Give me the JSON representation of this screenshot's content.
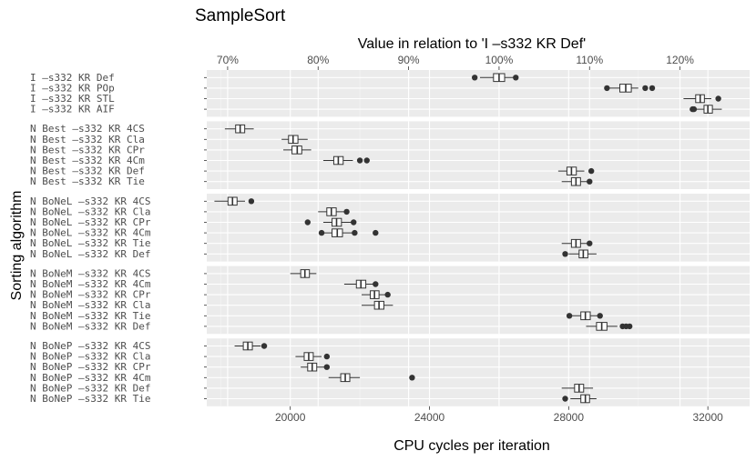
{
  "chart_data": {
    "type": "boxplot",
    "title": "SampleSort",
    "xlabel": "CPU cycles per iteration",
    "x2label": "Value in relation to 'I       –s332 KR Def'",
    "ylabel": "Sorting algorithm",
    "xlim": [
      17600,
      33200
    ],
    "x_ticks": [
      20000,
      24000,
      28000,
      32000
    ],
    "x_tick_labels": [
      "20000",
      "24000",
      "28000",
      "32000"
    ],
    "x2_reference": 26000,
    "x2_ticks": [
      70,
      80,
      90,
      100,
      110,
      120
    ],
    "x2_tick_labels": [
      "70%",
      "80%",
      "90%",
      "100%",
      "110%",
      "120%"
    ],
    "groups": [
      {
        "name": "I",
        "rows": [
          {
            "label": "I         –s332 KR Def",
            "whisker_low": 25450,
            "q1": 25840,
            "median": 26000,
            "q3": 26160,
            "whisker_high": 26520,
            "outliers": [
              25300,
              26480
            ]
          },
          {
            "label": "I         –s332 KR POp",
            "whisker_low": 29080,
            "q1": 29470,
            "median": 29640,
            "q3": 29800,
            "whisker_high": 30000,
            "outliers": [
              29100,
              30200,
              30400
            ]
          },
          {
            "label": "I         –s332 KR STL",
            "whisker_low": 31300,
            "q1": 31650,
            "median": 31780,
            "q3": 31900,
            "whisker_high": 32100,
            "outliers": [
              32300
            ]
          },
          {
            "label": "I         –s332 KR AIF",
            "whisker_low": 31550,
            "q1": 31890,
            "median": 32000,
            "q3": 32130,
            "whisker_high": 32400,
            "outliers": [
              31560,
              31600
            ]
          }
        ]
      },
      {
        "name": "N Best",
        "rows": [
          {
            "label": "N Best  –s332 KR 4CS",
            "whisker_low": 18120,
            "q1": 18430,
            "median": 18560,
            "q3": 18690,
            "whisker_high": 18950,
            "outliers": []
          },
          {
            "label": "N Best  –s332 KR Cla",
            "whisker_low": 19750,
            "q1": 19950,
            "median": 20080,
            "q3": 20220,
            "whisker_high": 20500,
            "outliers": []
          },
          {
            "label": "N Best  –s332 KR CPr",
            "whisker_low": 19800,
            "q1": 20050,
            "median": 20200,
            "q3": 20330,
            "whisker_high": 20600,
            "outliers": []
          },
          {
            "label": "N Best  –s332 KR 4Cm",
            "whisker_low": 20950,
            "q1": 21250,
            "median": 21380,
            "q3": 21520,
            "whisker_high": 21800,
            "outliers": [
              22000,
              22200
            ]
          },
          {
            "label": "N Best  –s332 KR Def",
            "whisker_low": 27700,
            "q1": 27950,
            "median": 28080,
            "q3": 28220,
            "whisker_high": 28450,
            "outliers": [
              28650
            ]
          },
          {
            "label": "N Best  –s332 KR Tie",
            "whisker_low": 27800,
            "q1": 28080,
            "median": 28210,
            "q3": 28340,
            "whisker_high": 28550,
            "outliers": [
              28600
            ]
          }
        ]
      },
      {
        "name": "N BoNeL",
        "rows": [
          {
            "label": "N BoNeL –s332 KR 4CS",
            "whisker_low": 17820,
            "q1": 18210,
            "median": 18340,
            "q3": 18470,
            "whisker_high": 18700,
            "outliers": [
              18880
            ]
          },
          {
            "label": "N BoNeL –s332 KR Cla",
            "whisker_low": 20800,
            "q1": 21050,
            "median": 21180,
            "q3": 21320,
            "whisker_high": 21600,
            "outliers": [
              21620
            ]
          },
          {
            "label": "N BoNeL –s332 KR CPr",
            "whisker_low": 20950,
            "q1": 21200,
            "median": 21330,
            "q3": 21470,
            "whisker_high": 21750,
            "outliers": [
              20500,
              21820
            ]
          },
          {
            "label": "N BoNeL –s332 KR 4Cm",
            "whisker_low": 20900,
            "q1": 21200,
            "median": 21350,
            "q3": 21500,
            "whisker_high": 21780,
            "outliers": [
              20900,
              21850,
              22450
            ]
          },
          {
            "label": "N BoNeL –s332 KR Tie",
            "whisker_low": 27800,
            "q1": 28080,
            "median": 28210,
            "q3": 28340,
            "whisker_high": 28550,
            "outliers": [
              28600
            ]
          },
          {
            "label": "N BoNeL –s332 KR Def",
            "whisker_low": 28000,
            "q1": 28300,
            "median": 28420,
            "q3": 28550,
            "whisker_high": 28800,
            "outliers": [
              27900
            ]
          }
        ]
      },
      {
        "name": "N BoNeM",
        "rows": [
          {
            "label": "N BoNeM –s332 KR 4CS",
            "whisker_low": 20000,
            "q1": 20300,
            "median": 20420,
            "q3": 20550,
            "whisker_high": 20750,
            "outliers": []
          },
          {
            "label": "N BoNeM –s332 KR 4Cm",
            "whisker_low": 21550,
            "q1": 21900,
            "median": 22030,
            "q3": 22170,
            "whisker_high": 22400,
            "outliers": [
              22450
            ]
          },
          {
            "label": "N BoNeM –s332 KR CPr",
            "whisker_low": 22050,
            "q1": 22300,
            "median": 22420,
            "q3": 22550,
            "whisker_high": 22800,
            "outliers": [
              22800
            ]
          },
          {
            "label": "N BoNeM –s332 KR Cla",
            "whisker_low": 22050,
            "q1": 22420,
            "median": 22550,
            "q3": 22690,
            "whisker_high": 22950,
            "outliers": []
          },
          {
            "label": "N BoNeM –s332 KR Tie",
            "whisker_low": 28050,
            "q1": 28350,
            "median": 28480,
            "q3": 28620,
            "whisker_high": 28900,
            "outliers": [
              28020,
              28900
            ]
          },
          {
            "label": "N BoNeM –s332 KR Def",
            "whisker_low": 28500,
            "q1": 28800,
            "median": 28950,
            "q3": 29100,
            "whisker_high": 29400,
            "outliers": [
              29550,
              29650,
              29750
            ]
          }
        ]
      },
      {
        "name": "N BoNeP",
        "rows": [
          {
            "label": "N BoNeP –s332 KR 4CS",
            "whisker_low": 18400,
            "q1": 18650,
            "median": 18780,
            "q3": 18910,
            "whisker_high": 19150,
            "outliers": [
              19250
            ]
          },
          {
            "label": "N BoNeP –s332 KR Cla",
            "whisker_low": 20150,
            "q1": 20400,
            "median": 20530,
            "q3": 20660,
            "whisker_high": 20900,
            "outliers": [
              21050
            ]
          },
          {
            "label": "N BoNeP –s332 KR CPr",
            "whisker_low": 20300,
            "q1": 20500,
            "median": 20630,
            "q3": 20760,
            "whisker_high": 21000,
            "outliers": [
              21050
            ]
          },
          {
            "label": "N BoNeP –s332 KR 4Cm",
            "whisker_low": 21100,
            "q1": 21450,
            "median": 21580,
            "q3": 21710,
            "whisker_high": 22000,
            "outliers": [
              23500
            ]
          },
          {
            "label": "N BoNeP –s332 KR Def",
            "whisker_low": 27800,
            "q1": 28170,
            "median": 28300,
            "q3": 28430,
            "whisker_high": 28700,
            "outliers": []
          },
          {
            "label": "N BoNeP –s332 KR Tie",
            "whisker_low": 28050,
            "q1": 28350,
            "median": 28480,
            "q3": 28600,
            "whisker_high": 28800,
            "outliers": [
              27900
            ]
          }
        ]
      }
    ]
  }
}
